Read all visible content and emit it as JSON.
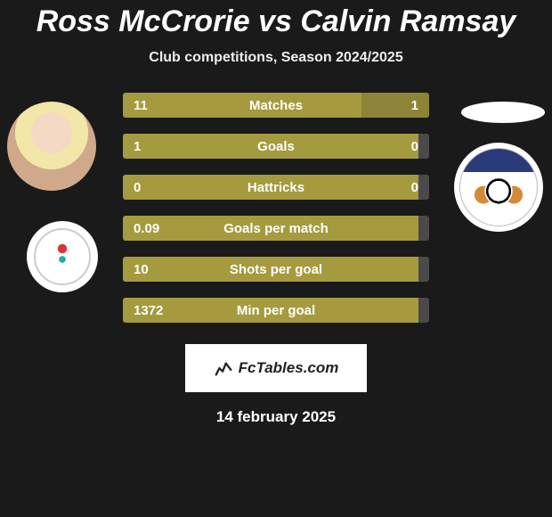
{
  "title": "Ross McCrorie vs Calvin Ramsay",
  "subtitle": "Club competitions, Season 2024/2025",
  "date": "14 february 2025",
  "footer_label": "FcTables.com",
  "colors": {
    "olive": "#a59a3e",
    "olive_dark": "#8d8436",
    "gray_bar": "#4a4a4a",
    "background": "#1a1a1a"
  },
  "bar_total_width": 344,
  "stats": [
    {
      "label": "Matches",
      "left_val": "11",
      "right_val": "1",
      "left_w": 268,
      "right_w": 76,
      "left_color": "#a59a3e",
      "right_color": "#8d8436"
    },
    {
      "label": "Goals",
      "left_val": "1",
      "right_val": "0",
      "left_w": 336,
      "right_w": 8,
      "left_color": "#a59a3e",
      "right_color": "#4a4a4a"
    },
    {
      "label": "Hattricks",
      "left_val": "0",
      "right_val": "0",
      "left_w": 336,
      "right_w": 8,
      "left_color": "#a59a3e",
      "right_color": "#4a4a4a"
    },
    {
      "label": "Goals per match",
      "left_val": "0.09",
      "right_val": "",
      "left_w": 336,
      "right_w": 8,
      "left_color": "#a59a3e",
      "right_color": "#4a4a4a"
    },
    {
      "label": "Shots per goal",
      "left_val": "10",
      "right_val": "",
      "left_w": 336,
      "right_w": 8,
      "left_color": "#a59a3e",
      "right_color": "#4a4a4a"
    },
    {
      "label": "Min per goal",
      "left_val": "1372",
      "right_val": "",
      "left_w": 336,
      "right_w": 8,
      "left_color": "#a59a3e",
      "right_color": "#4a4a4a"
    }
  ]
}
